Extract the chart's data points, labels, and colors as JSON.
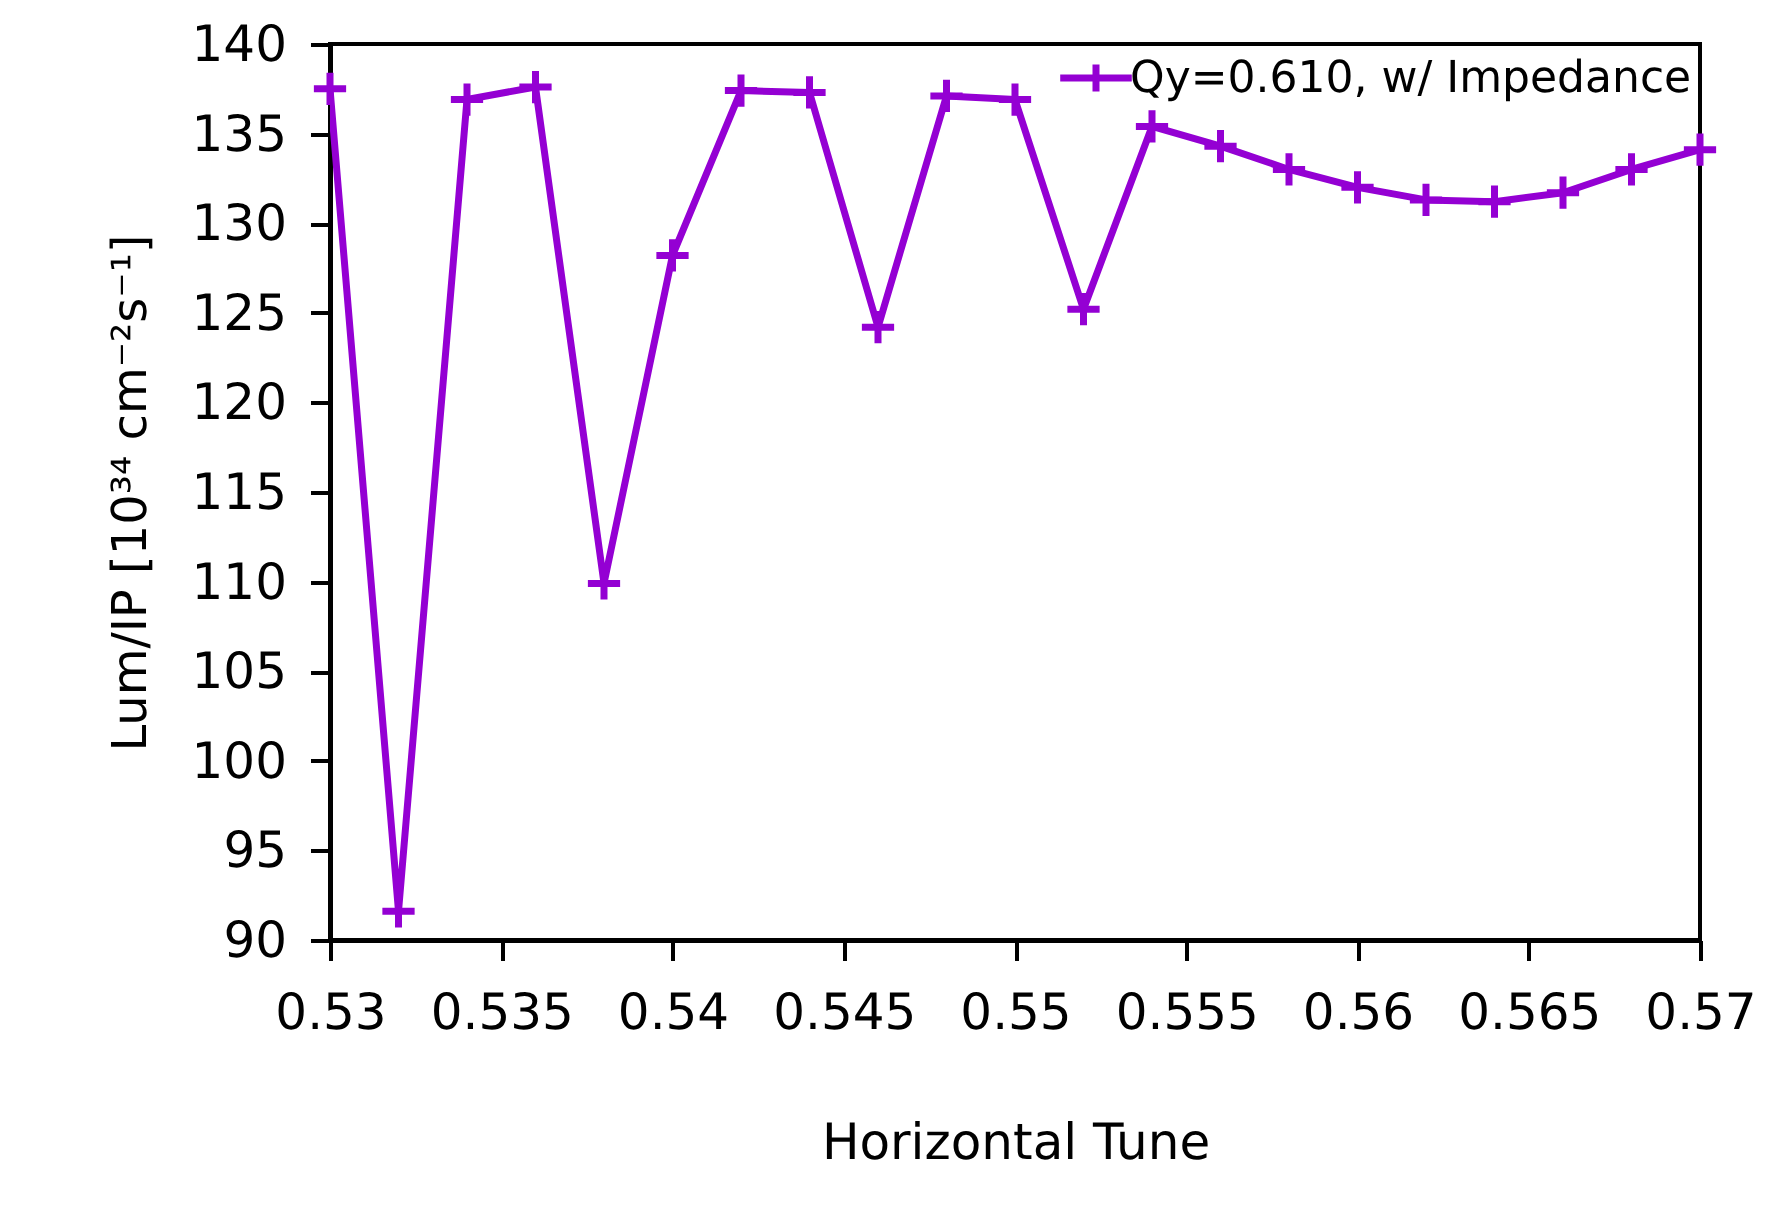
{
  "chart_data": {
    "type": "line",
    "xlabel": "Horizontal Tune",
    "ylabel": "Lum/IP [10³⁴ cm⁻²s⁻¹]",
    "x": [
      0.53,
      0.532,
      0.534,
      0.536,
      0.538,
      0.54,
      0.542,
      0.544,
      0.546,
      0.548,
      0.55,
      0.552,
      0.554,
      0.556,
      0.558,
      0.56,
      0.562,
      0.564,
      0.566,
      0.568,
      0.57
    ],
    "series": [
      {
        "name": "Qy=0.610, w/ Impedance",
        "color": "#9400d3",
        "values": [
          137.5,
          91.6,
          136.9,
          137.6,
          109.9,
          128.2,
          137.4,
          137.3,
          124.2,
          137.1,
          136.9,
          125.2,
          135.4,
          134.3,
          133.0,
          132.0,
          131.3,
          131.2,
          131.7,
          133.0,
          134.1
        ]
      }
    ],
    "xlim": [
      0.53,
      0.57
    ],
    "xticks": [
      0.53,
      0.535,
      0.54,
      0.545,
      0.55,
      0.555,
      0.56,
      0.565,
      0.57
    ],
    "ylim": [
      90,
      140
    ],
    "yticks": [
      90,
      95,
      100,
      105,
      110,
      115,
      120,
      125,
      130,
      135,
      140
    ],
    "grid": false,
    "legend": "top right",
    "marker": "cross",
    "line_style": "solid"
  }
}
